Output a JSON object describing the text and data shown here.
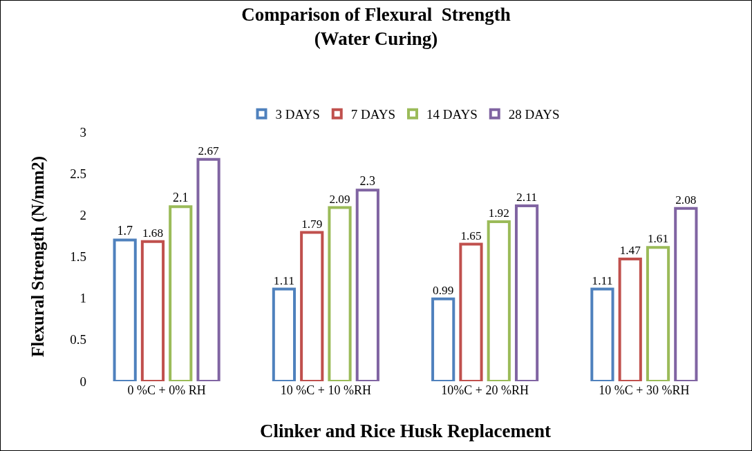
{
  "chart_data": {
    "type": "bar",
    "title": "Comparison of Flexural  Strength\n(Water Curing)",
    "xlabel": "Clinker and Rice Husk Replacement",
    "ylabel": "Flexural Strength (N/mm2)",
    "categories": [
      "0 %C + 0% RH",
      "10 %C + 10 %RH",
      "10%C + 20 %RH",
      "10 %C + 30 %RH"
    ],
    "series": [
      {
        "name": "3 DAYS",
        "color": "#4f81bd",
        "values": [
          1.7,
          1.11,
          0.99,
          1.11
        ]
      },
      {
        "name": "7 DAYS",
        "color": "#c0504d",
        "values": [
          1.68,
          1.79,
          1.65,
          1.47
        ]
      },
      {
        "name": "14 DAYS",
        "color": "#9bbb59",
        "values": [
          2.1,
          2.09,
          1.92,
          1.61
        ]
      },
      {
        "name": "28 DAYS",
        "color": "#8064a2",
        "values": [
          2.67,
          2.3,
          2.11,
          2.08
        ]
      }
    ],
    "ylim": [
      0,
      3
    ],
    "yticks": [
      0,
      0.5,
      1,
      1.5,
      2,
      2.5,
      3
    ],
    "grid": false,
    "legend": "top",
    "data_labels": true
  }
}
